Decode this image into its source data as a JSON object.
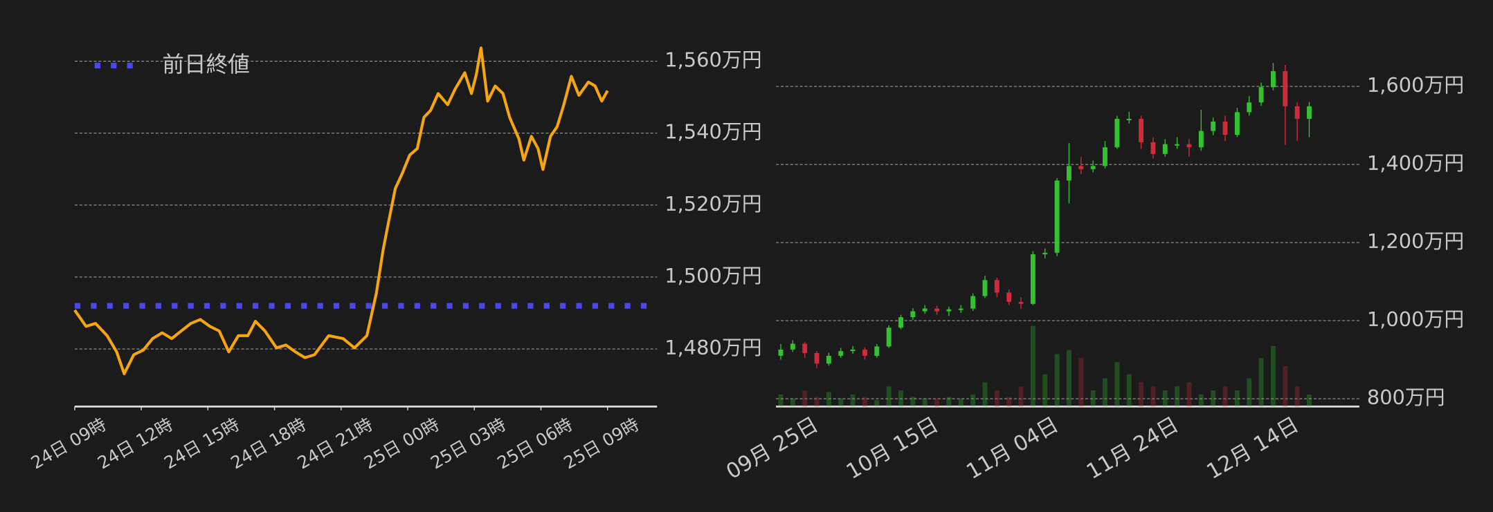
{
  "chart_data": [
    {
      "type": "line",
      "x": [
        0,
        0.51,
        0.94,
        1.46,
        1.89,
        2.23,
        2.66,
        3.09,
        3.51,
        3.94,
        4.37,
        4.8,
        5.23,
        5.66,
        6.09,
        6.51,
        6.94,
        7.37,
        7.8,
        8.14,
        8.57,
        9.09,
        9.51,
        9.94,
        10.37,
        10.8,
        11.44,
        12.09,
        12.6,
        13.16,
        13.59,
        13.89,
        14.14,
        14.44,
        14.74,
        15.09,
        15.43,
        15.73,
        16.03,
        16.37,
        16.8,
        17.14,
        17.57,
        17.87,
        18.09,
        18.3,
        18.6,
        18.94,
        19.29,
        19.59,
        20.01,
        20.23,
        20.57,
        20.87,
        21.09,
        21.43,
        21.73,
        22.03,
        22.37,
        22.71,
        23.14,
        23.44,
        23.74,
        24.0
      ],
      "values": [
        1490.8,
        1486.3,
        1487.1,
        1483.7,
        1479.2,
        1473.1,
        1478.4,
        1479.7,
        1482.9,
        1484.5,
        1482.9,
        1485.0,
        1487.1,
        1488.2,
        1486.3,
        1485.0,
        1479.2,
        1483.7,
        1483.7,
        1487.7,
        1485.0,
        1480.3,
        1481.1,
        1479.2,
        1477.6,
        1478.4,
        1483.7,
        1482.9,
        1480.3,
        1483.7,
        1495.6,
        1507.5,
        1515.4,
        1524.6,
        1528.6,
        1533.9,
        1535.7,
        1544.4,
        1546.3,
        1551.0,
        1547.9,
        1552.3,
        1556.8,
        1551.0,
        1556.3,
        1563.7,
        1548.9,
        1553.1,
        1551.0,
        1544.4,
        1538.4,
        1532.5,
        1539.1,
        1535.7,
        1529.9,
        1539.1,
        1541.8,
        1547.9,
        1555.8,
        1550.5,
        1554.2,
        1553.1,
        1548.9,
        1551.8
      ],
      "color": "#f5a60f",
      "xlim": [
        0,
        26.23
      ],
      "ylim": [
        1464,
        1564
      ],
      "xticks": [
        {
          "value": 0,
          "label": "24日 09時"
        },
        {
          "value": 3,
          "label": "24日 12時"
        },
        {
          "value": 6,
          "label": "24日 15時"
        },
        {
          "value": 9,
          "label": "24日 18時"
        },
        {
          "value": 12,
          "label": "24日 21時"
        },
        {
          "value": 15,
          "label": "25日 00時"
        },
        {
          "value": 18,
          "label": "25日 03時"
        },
        {
          "value": 21,
          "label": "25日 06時"
        },
        {
          "value": 24,
          "label": "25日 09時"
        }
      ],
      "yticks": [
        {
          "value": 1480,
          "label": "1,480万円"
        },
        {
          "value": 1500,
          "label": "1,500万円"
        },
        {
          "value": 1520,
          "label": "1,520万円"
        },
        {
          "value": 1540,
          "label": "1,540万円"
        },
        {
          "value": 1560,
          "label": "1,560万円"
        }
      ],
      "grid": true,
      "legend": "upper left",
      "reference_line": {
        "name": "前日終値",
        "value": 1492,
        "color": "#4a48e8"
      }
    },
    {
      "type": "candlestick",
      "categories": [
        null,
        null,
        null,
        "09月 25日",
        null,
        null,
        null,
        null,
        null,
        null,
        null,
        null,
        null,
        "10月 15日",
        null,
        null,
        null,
        null,
        null,
        null,
        null,
        null,
        null,
        "11月 04日",
        null,
        null,
        null,
        null,
        null,
        null,
        null,
        null,
        null,
        "11月 24日",
        null,
        null,
        null,
        null,
        null,
        null,
        null,
        null,
        null,
        "12月 14日",
        null
      ],
      "open": [
        910,
        926,
        941,
        917,
        890,
        910,
        922,
        926,
        910,
        934,
        982,
        1009,
        1024,
        1031,
        1024,
        1029,
        1031,
        1063,
        1104,
        1072,
        1048,
        1043,
        1170,
        1174,
        1359,
        1396,
        1388,
        1396,
        1444,
        1517,
        1517,
        1457,
        1427,
        1452,
        1452,
        1444,
        1486,
        1510,
        1476,
        1534,
        1559,
        1598,
        1639,
        1549,
        1517
      ],
      "high": [
        940,
        950,
        945,
        922,
        918,
        930,
        935,
        932,
        940,
        988,
        1015,
        1032,
        1040,
        1038,
        1036,
        1040,
        1070,
        1115,
        1110,
        1080,
        1060,
        1178,
        1185,
        1365,
        1455,
        1420,
        1410,
        1460,
        1525,
        1535,
        1525,
        1470,
        1465,
        1470,
        1465,
        1540,
        1520,
        1525,
        1545,
        1575,
        1610,
        1660,
        1655,
        1560,
        1560
      ],
      "low": [
        900,
        920,
        905,
        878,
        885,
        905,
        915,
        900,
        905,
        930,
        978,
        1002,
        1018,
        1015,
        1012,
        1020,
        1025,
        1058,
        1060,
        1040,
        1030,
        1040,
        1160,
        1165,
        1300,
        1375,
        1380,
        1390,
        1440,
        1505,
        1440,
        1415,
        1420,
        1440,
        1420,
        1435,
        1475,
        1460,
        1470,
        1525,
        1550,
        1590,
        1450,
        1460,
        1470
      ],
      "close": [
        926,
        941,
        917,
        890,
        910,
        922,
        926,
        910,
        934,
        982,
        1009,
        1024,
        1031,
        1024,
        1029,
        1031,
        1063,
        1104,
        1072,
        1048,
        1043,
        1170,
        1174,
        1359,
        1396,
        1388,
        1396,
        1444,
        1517,
        1517,
        1457,
        1427,
        1452,
        1452,
        1444,
        1486,
        1510,
        1476,
        1534,
        1559,
        1598,
        1639,
        1549,
        1517,
        1549
      ],
      "volume": [
        15,
        10,
        20,
        12,
        18,
        10,
        15,
        12,
        8,
        25,
        20,
        12,
        10,
        10,
        12,
        10,
        15,
        30,
        20,
        12,
        25,
        100,
        40,
        65,
        70,
        60,
        20,
        35,
        55,
        40,
        30,
        25,
        20,
        25,
        30,
        15,
        20,
        25,
        20,
        35,
        60,
        75,
        50,
        25,
        15
      ],
      "up_color": "#35c232",
      "down_color": "#d02b3a",
      "ylim": [
        780,
        1670
      ],
      "yticks": [
        {
          "value": 800,
          "label": "800万円"
        },
        {
          "value": 1000,
          "label": "1,000万円"
        },
        {
          "value": 1200,
          "label": "1,200万円"
        },
        {
          "value": 1400,
          "label": "1,400万円"
        },
        {
          "value": 1600,
          "label": "1,600万円"
        }
      ],
      "grid": true
    }
  ]
}
